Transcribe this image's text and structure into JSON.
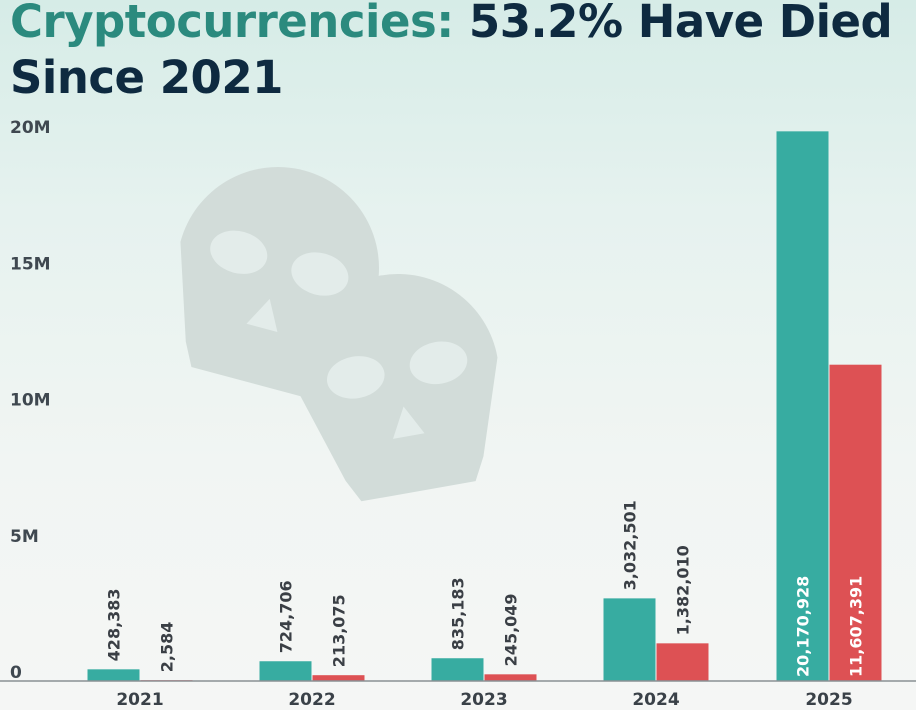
{
  "title": {
    "accent": "Cryptocurrencies:",
    "rest": "53.2% Have Died Since 2021"
  },
  "colors": {
    "title_accent": "#2b8a7e",
    "title_main": "#0e2a40",
    "series_total": "#37aca1",
    "series_dead": "#dd5154",
    "skull": "#d2dcd9"
  },
  "icons": [
    "skull-icon",
    "skull-icon"
  ],
  "chart_data": {
    "type": "bar",
    "categories": [
      "2021",
      "2022",
      "2023",
      "2024",
      "2025"
    ],
    "series": [
      {
        "values": [
          428383,
          724706,
          835183,
          3032501,
          20170928
        ],
        "labels": [
          "428,383",
          "724,706",
          "835,183",
          "3,032,501",
          "20,170,928"
        ],
        "color": "#37aca1"
      },
      {
        "values": [
          2584,
          213075,
          245049,
          1382010,
          11607391
        ],
        "labels": [
          "2,584",
          "213,075",
          "245,049",
          "1,382,010",
          "11,607,391"
        ],
        "color": "#dd5154"
      }
    ],
    "y_ticks": [
      0,
      5000000,
      10000000,
      15000000,
      20000000
    ],
    "y_tick_labels": [
      "0",
      "5M",
      "10M",
      "15M",
      "20M"
    ],
    "ylim": [
      0,
      20000000
    ],
    "xlabel": "",
    "ylabel": "",
    "grid": false,
    "legend": "none"
  }
}
